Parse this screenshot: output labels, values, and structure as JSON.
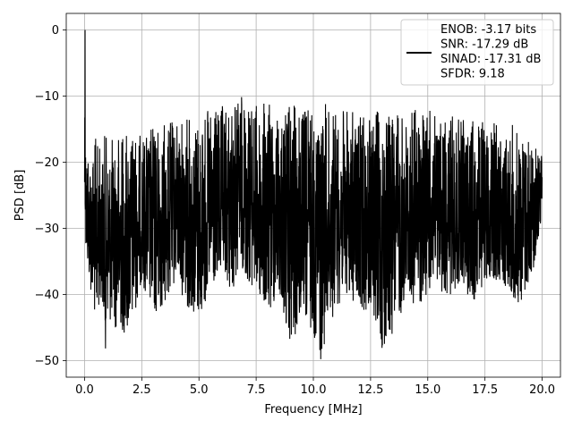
{
  "chart_data": {
    "type": "line",
    "title": "",
    "xlabel": "Frequency [MHz]",
    "ylabel": "PSD [dB]",
    "xlim": [
      -0.8,
      20.8
    ],
    "ylim": [
      -52.5,
      2.5
    ],
    "xticks": [
      0.0,
      2.5,
      5.0,
      7.5,
      10.0,
      12.5,
      15.0,
      17.5,
      20.0
    ],
    "xtick_labels": [
      "0.0",
      "2.5",
      "5.0",
      "7.5",
      "10.0",
      "12.5",
      "15.0",
      "17.5",
      "20.0"
    ],
    "yticks": [
      0,
      -10,
      -20,
      -30,
      -40,
      -50
    ],
    "ytick_labels": [
      "0",
      "−10",
      "−20",
      "−30",
      "−40",
      "−50"
    ],
    "grid": true,
    "legend_position": "top-right",
    "legend_lines": [
      "ENOB: -3.17 bits",
      "SNR: -17.29 dB",
      "SINAD: -17.31 dB",
      "SFDR: 9.18"
    ],
    "series": [
      {
        "color": "#000000",
        "x": [
          0.0,
          0.02,
          0.05,
          0.1,
          0.2,
          0.5,
          0.75,
          0.9,
          1.0,
          1.5,
          2.0,
          2.5,
          3.0,
          3.5,
          4.0,
          4.5,
          5.0,
          5.5,
          6.0,
          6.5,
          6.9,
          7.0,
          7.5,
          8.0,
          8.5,
          9.0,
          9.5,
          10.0,
          10.35,
          10.5,
          11.0,
          11.5,
          12.0,
          12.5,
          13.0,
          13.5,
          14.0,
          14.5,
          15.0,
          15.5,
          16.0,
          16.5,
          17.0,
          17.5,
          18.0,
          18.5,
          19.0,
          19.5,
          20.0
        ],
        "y_upper": [
          0.0,
          -17.0,
          -15.0,
          -16.0,
          -18.0,
          -16.0,
          -18.0,
          -15.0,
          -17.0,
          -15.0,
          -14.5,
          -16.0,
          -14.0,
          -14.0,
          -13.5,
          -13.0,
          -12.5,
          -12.0,
          -11.5,
          -11.0,
          -9.2,
          -10.0,
          -11.0,
          -11.0,
          -11.5,
          -11.0,
          -11.5,
          -11.0,
          -11.0,
          -11.0,
          -12.0,
          -12.0,
          -12.5,
          -12.5,
          -12.0,
          -12.0,
          -12.5,
          -11.0,
          -12.0,
          -12.5,
          -13.0,
          -13.5,
          -13.0,
          -13.5,
          -14.0,
          -14.0,
          -14.5,
          -16.0,
          -18.0
        ],
        "y_lower": [
          -23.0,
          -28.0,
          -34.0,
          -36.0,
          -38.0,
          -45.0,
          -40.0,
          -49.0,
          -44.0,
          -46.0,
          -46.0,
          -38.0,
          -44.0,
          -42.0,
          -38.0,
          -42.0,
          -44.0,
          -40.0,
          -38.0,
          -40.0,
          -36.0,
          -38.0,
          -40.0,
          -44.0,
          -40.0,
          -49.0,
          -44.0,
          -46.0,
          -50.5,
          -47.0,
          -42.0,
          -40.0,
          -43.0,
          -42.0,
          -49.0,
          -46.0,
          -42.0,
          -42.0,
          -40.0,
          -40.0,
          -40.0,
          -38.0,
          -42.0,
          -38.0,
          -38.0,
          -39.0,
          -42.0,
          -39.0,
          -28.0
        ]
      }
    ]
  }
}
